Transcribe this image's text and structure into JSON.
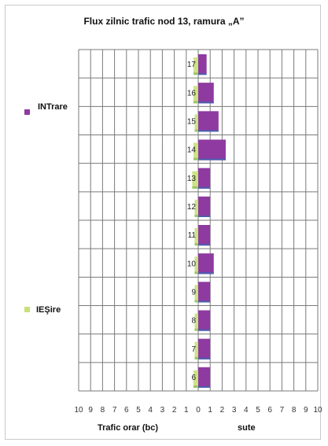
{
  "chart_data": {
    "type": "bar",
    "orientation": "horizontal-population-pyramid",
    "title": "Flux zilnic trafic nod 13, ramura „A”",
    "xlabel": "Trafic orar (bc)",
    "xunit": "sute",
    "categories": [
      "17",
      "16",
      "15",
      "14",
      "13",
      "12",
      "11",
      "10",
      "9",
      "8",
      "7",
      "6"
    ],
    "x_tick_labels": [
      "10",
      "9",
      "8",
      "7",
      "6",
      "5",
      "4",
      "3",
      "2",
      "1",
      "0",
      "1",
      "2",
      "3",
      "4",
      "5",
      "6",
      "7",
      "8",
      "9",
      "10"
    ],
    "xlim": [
      -10,
      10
    ],
    "grid": true,
    "series": [
      {
        "name": "INTrare",
        "side": "right",
        "color": "#8e3aa0",
        "values": [
          0.7,
          1.3,
          1.7,
          2.3,
          1.0,
          1.0,
          1.0,
          1.3,
          1.0,
          1.0,
          1.0,
          1.0
        ]
      },
      {
        "name": "IEŞire",
        "side": "left",
        "color": "#c8e07a",
        "values": [
          0.4,
          0.4,
          0.3,
          0.4,
          0.5,
          0.3,
          0.3,
          0.3,
          0.3,
          0.3,
          0.3,
          0.4
        ]
      }
    ],
    "legend": [
      {
        "label": "INTrare",
        "color": "#8e3aa0"
      },
      {
        "label": "IEŞire",
        "color": "#c8e07a"
      }
    ]
  }
}
